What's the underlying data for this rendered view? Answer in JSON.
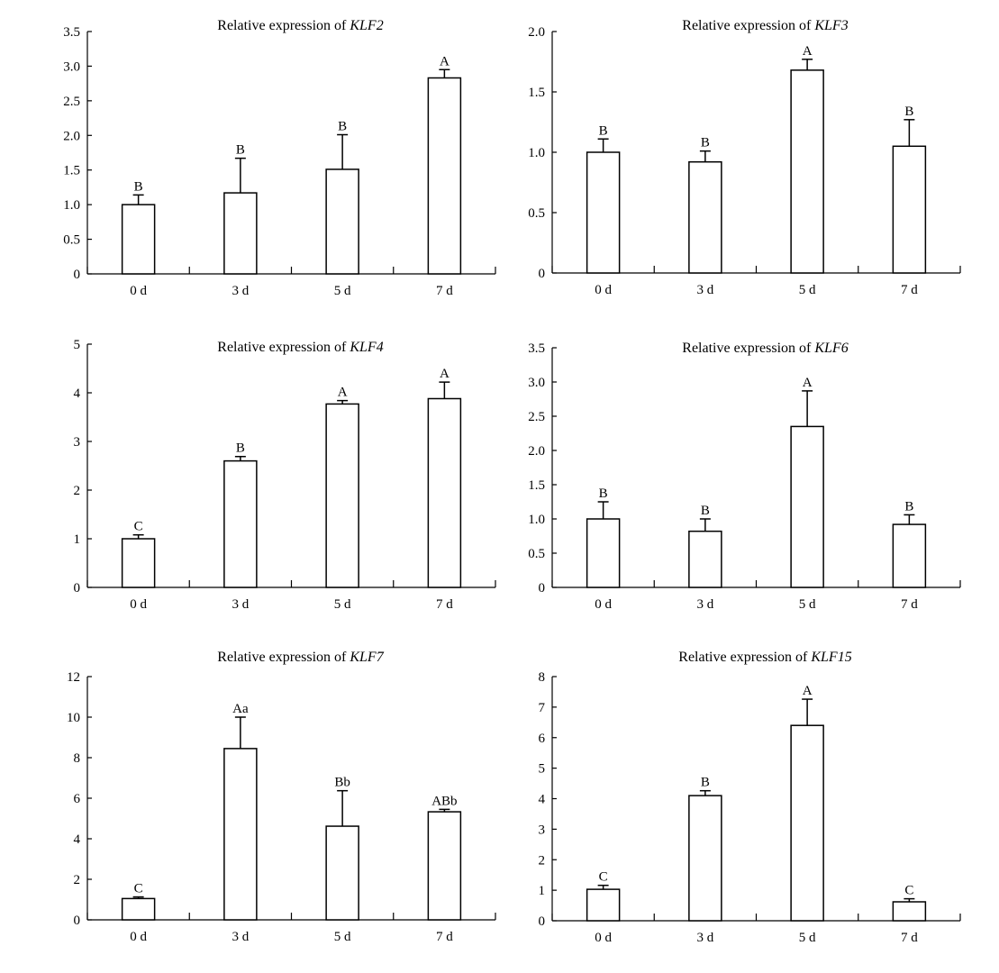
{
  "chart_data": [
    {
      "type": "bar",
      "title": "Relative expression of KLF2",
      "title_prefix": "Relative expression of ",
      "title_gene": "KLF2",
      "categories": [
        "0 d",
        "3 d",
        "5 d",
        "7 d"
      ],
      "values": [
        1.0,
        1.17,
        1.51,
        2.83
      ],
      "errors": [
        0.14,
        0.5,
        0.5,
        0.12
      ],
      "significance": [
        "B",
        "B",
        "B",
        "A"
      ],
      "ylim": [
        0,
        3.5
      ],
      "yticks": [
        0,
        0.5,
        1.0,
        1.5,
        2.0,
        2.5,
        3.0,
        3.5
      ],
      "ytick_labels": [
        "0",
        "0.5",
        "1.0",
        "1.5",
        "2.0",
        "2.5",
        "3.0",
        "3.5"
      ],
      "xlabel": "",
      "ylabel": ""
    },
    {
      "type": "bar",
      "title": "Relative expression of KLF3",
      "title_prefix": "Relative expression of ",
      "title_gene": "KLF3",
      "categories": [
        "0 d",
        "3 d",
        "5 d",
        "7 d"
      ],
      "values": [
        1.0,
        0.92,
        1.68,
        1.05
      ],
      "errors": [
        0.11,
        0.09,
        0.09,
        0.22
      ],
      "significance": [
        "B",
        "B",
        "A",
        "B"
      ],
      "ylim": [
        0,
        2.0
      ],
      "yticks": [
        0,
        0.5,
        1.0,
        1.5,
        2.0
      ],
      "ytick_labels": [
        "0",
        "0.5",
        "1.0",
        "1.5",
        "2.0"
      ],
      "xlabel": "",
      "ylabel": ""
    },
    {
      "type": "bar",
      "title": "Relative expression of KLF4",
      "title_prefix": "Relative expression of ",
      "title_gene": "KLF4",
      "categories": [
        "0 d",
        "3 d",
        "5 d",
        "7 d"
      ],
      "values": [
        1.0,
        2.6,
        3.77,
        3.88
      ],
      "errors": [
        0.08,
        0.09,
        0.07,
        0.34
      ],
      "significance": [
        "C",
        "B",
        "A",
        "A"
      ],
      "ylim": [
        0,
        5
      ],
      "yticks": [
        0,
        1,
        2,
        3,
        4,
        5
      ],
      "ytick_labels": [
        "0",
        "1",
        "2",
        "3",
        "4",
        "5"
      ],
      "xlabel": "",
      "ylabel": ""
    },
    {
      "type": "bar",
      "title": "Relative expression of KLF6",
      "title_prefix": "Relative expression of ",
      "title_gene": "KLF6",
      "categories": [
        "0 d",
        "3 d",
        "5 d",
        "7 d"
      ],
      "values": [
        1.0,
        0.82,
        2.35,
        0.92
      ],
      "errors": [
        0.25,
        0.18,
        0.52,
        0.14
      ],
      "significance": [
        "B",
        "B",
        "A",
        "B"
      ],
      "ylim": [
        0,
        3.5
      ],
      "yticks": [
        0,
        0.5,
        1.0,
        1.5,
        2.0,
        2.5,
        3.0,
        3.5
      ],
      "ytick_labels": [
        "0",
        "0.5",
        "1.0",
        "1.5",
        "2.0",
        "2.5",
        "3.0",
        "3.5"
      ],
      "xlabel": "",
      "ylabel": ""
    },
    {
      "type": "bar",
      "title": "Relative expression of KLF7",
      "title_prefix": "Relative expression of ",
      "title_gene": "KLF7",
      "categories": [
        "0 d",
        "3 d",
        "5 d",
        "7 d"
      ],
      "values": [
        1.05,
        8.45,
        4.62,
        5.33
      ],
      "errors": [
        0.08,
        1.55,
        1.75,
        0.12
      ],
      "significance": [
        "C",
        "Aa",
        "Bb",
        "ABb"
      ],
      "ylim": [
        0,
        12
      ],
      "yticks": [
        0,
        2,
        4,
        6,
        8,
        10,
        12
      ],
      "ytick_labels": [
        "0",
        "2",
        "4",
        "6",
        "8",
        "10",
        "12"
      ],
      "xlabel": "",
      "ylabel": ""
    },
    {
      "type": "bar",
      "title": "Relative expression of KLF15",
      "title_prefix": "Relative expression of ",
      "title_gene": "KLF15",
      "categories": [
        "0 d",
        "3 d",
        "5 d",
        "7 d"
      ],
      "values": [
        1.03,
        4.1,
        6.4,
        0.62
      ],
      "errors": [
        0.13,
        0.16,
        0.86,
        0.1
      ],
      "significance": [
        "C",
        "B",
        "A",
        "C"
      ],
      "ylim": [
        0,
        8
      ],
      "yticks": [
        0,
        1,
        2,
        3,
        4,
        5,
        6,
        7,
        8
      ],
      "ytick_labels": [
        "0",
        "1",
        "2",
        "3",
        "4",
        "5",
        "6",
        "7",
        "8"
      ],
      "xlabel": "",
      "ylabel": ""
    }
  ]
}
